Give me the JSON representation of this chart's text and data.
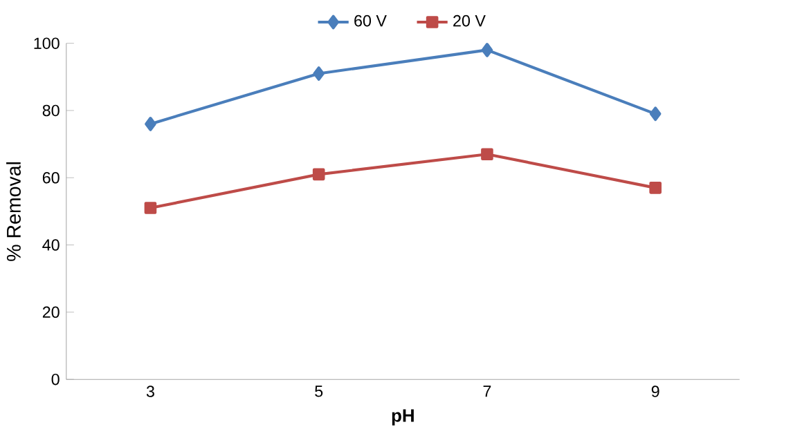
{
  "chart_data": {
    "type": "line",
    "xlabel": "pH",
    "ylabel": "% Removal",
    "categories": [
      "3",
      "5",
      "7",
      "9"
    ],
    "series": [
      {
        "name": "60 V",
        "color": "#4a7ebb",
        "marker": "diamond",
        "values": [
          76,
          91,
          98,
          79
        ]
      },
      {
        "name": "20 V",
        "color": "#be4b48",
        "marker": "square",
        "values": [
          51,
          61,
          67,
          57
        ]
      }
    ],
    "ylim": [
      0,
      100
    ],
    "yticks": [
      0,
      20,
      40,
      60,
      80,
      100
    ],
    "grid": false,
    "legend": "top",
    "line_style": "solid"
  }
}
